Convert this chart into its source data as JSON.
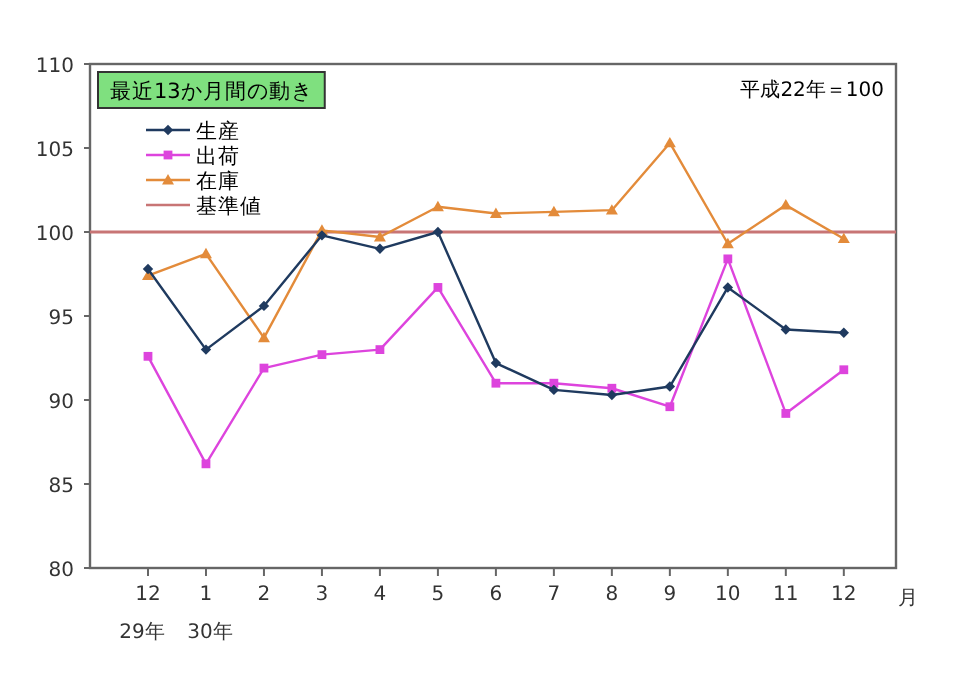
{
  "chart_data": {
    "type": "line",
    "title": "最近13か月間の動き",
    "subtitle": "平成22年＝100",
    "xlabel": "月",
    "categories": [
      "12\n29年",
      "1\n30年",
      "2",
      "3",
      "4",
      "5",
      "6",
      "7",
      "8",
      "9",
      "10",
      "11",
      "12"
    ],
    "series": [
      {
        "name": "生産",
        "color": "#1f3a5f",
        "marker": "diamond",
        "values": [
          97.8,
          93.0,
          95.6,
          99.8,
          99.0,
          100.0,
          92.2,
          90.6,
          90.3,
          90.8,
          96.7,
          94.2,
          94.0
        ]
      },
      {
        "name": "出荷",
        "color": "#dd44dd",
        "marker": "square",
        "values": [
          92.6,
          86.2,
          91.9,
          92.7,
          93.0,
          96.7,
          91.0,
          91.0,
          90.7,
          89.6,
          98.4,
          89.2,
          91.8
        ]
      },
      {
        "name": "在庫",
        "color": "#e38b3a",
        "marker": "triangle",
        "values": [
          97.4,
          98.7,
          93.7,
          100.1,
          99.7,
          101.5,
          101.1,
          101.2,
          101.3,
          105.3,
          99.3,
          101.6,
          99.6
        ]
      }
    ],
    "ref_lines": [
      {
        "axis": "y",
        "value": 100,
        "label": "基準値",
        "color": "#c87575"
      }
    ],
    "ylim": [
      80,
      110
    ],
    "yticks": [
      80,
      85,
      90,
      95,
      100,
      105,
      110
    ],
    "grid": false,
    "legend": "top left"
  }
}
